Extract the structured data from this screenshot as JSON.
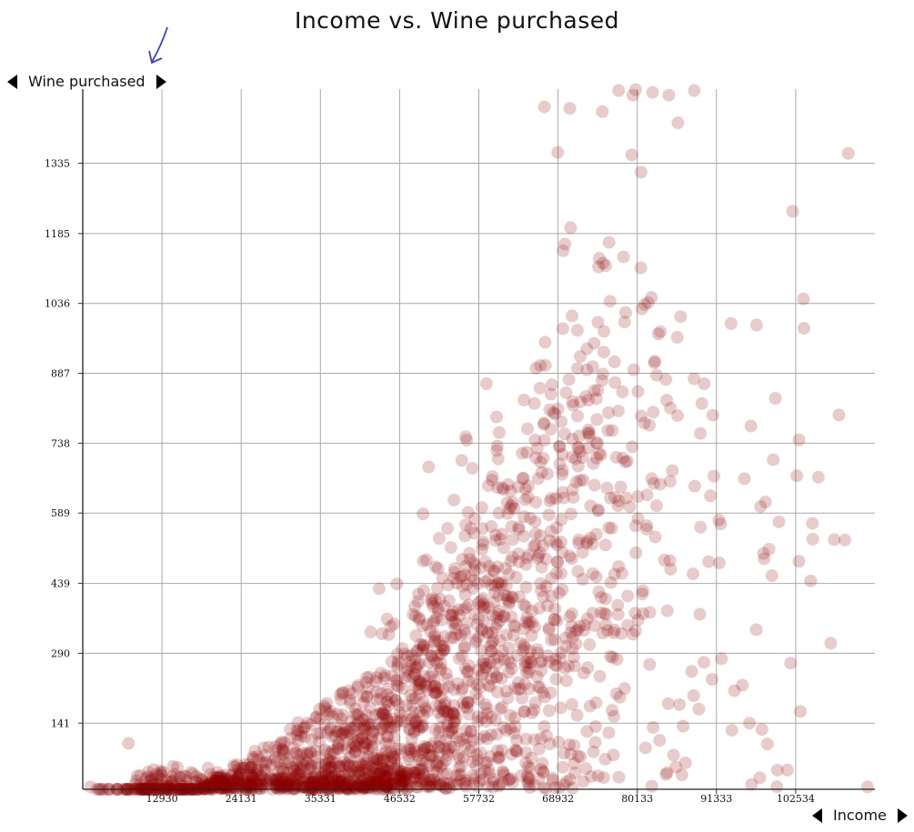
{
  "chart_data": {
    "type": "scatter",
    "title": "Income vs. Wine purchased",
    "xlabel": "Income",
    "ylabel": "Wine purchased",
    "xlim": [
      1730,
      113734
    ],
    "ylim": [
      0,
      1493
    ],
    "x_ticks": [
      "12930",
      "24131",
      "35331",
      "46532",
      "57732",
      "68932",
      "80133",
      "91333",
      "102534"
    ],
    "y_ticks": [
      "141",
      "290",
      "439",
      "589",
      "738",
      "887",
      "1036",
      "1185",
      "1335"
    ],
    "grid": true,
    "point_color": "#8b0000",
    "point_opacity": 0.2,
    "approx_point_count": 1800,
    "outliers": [
      {
        "x": 67000,
        "y": 1455
      },
      {
        "x": 70600,
        "y": 1452
      },
      {
        "x": 75200,
        "y": 1445
      },
      {
        "x": 77500,
        "y": 1490
      },
      {
        "x": 79900,
        "y": 1492
      },
      {
        "x": 82300,
        "y": 1486
      },
      {
        "x": 84600,
        "y": 1480
      },
      {
        "x": 88200,
        "y": 1490
      },
      {
        "x": 103700,
        "y": 983
      },
      {
        "x": 97000,
        "y": 990
      },
      {
        "x": 112700,
        "y": 5
      },
      {
        "x": 2800,
        "y": 5
      },
      {
        "x": 8200,
        "y": 98
      },
      {
        "x": 103000,
        "y": 745
      },
      {
        "x": 103200,
        "y": 166
      }
    ]
  }
}
